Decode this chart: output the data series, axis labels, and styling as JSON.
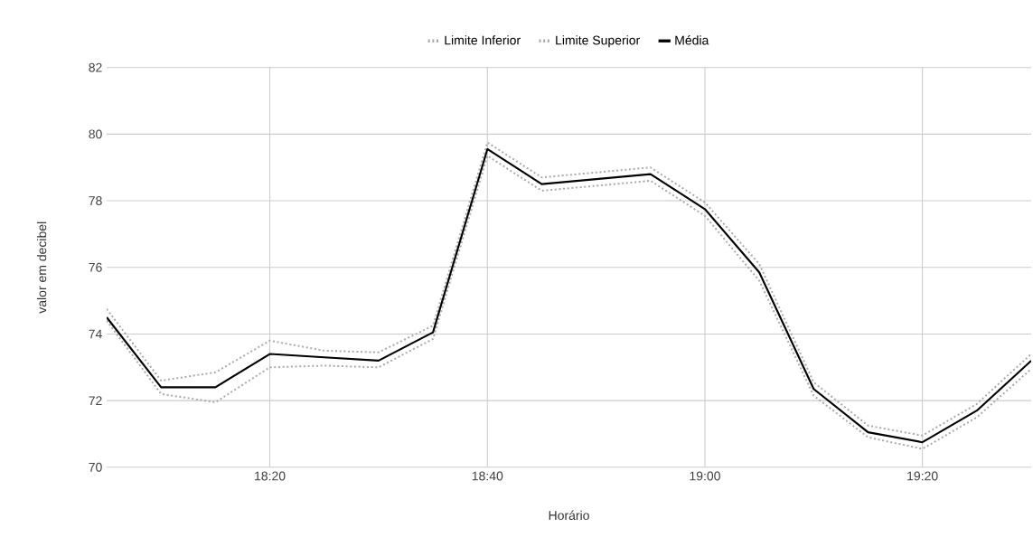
{
  "chart_data": {
    "type": "line",
    "xlabel": "Horário",
    "ylabel": "valor em decibel",
    "x": [
      18.0833,
      18.1667,
      18.25,
      18.3333,
      18.4167,
      18.5,
      18.5833,
      18.6667,
      18.75,
      18.8333,
      18.9167,
      19.0,
      19.0833,
      19.1667,
      19.25,
      19.3333,
      19.4167,
      19.5
    ],
    "series": [
      {
        "name": "Limite Inferior",
        "color": "#aaaaaa",
        "line_style": "dotted",
        "values": [
          74.4,
          72.2,
          71.95,
          73.0,
          73.05,
          73.0,
          73.85,
          79.35,
          78.3,
          78.45,
          78.6,
          77.55,
          75.6,
          72.15,
          70.9,
          70.55,
          71.5,
          72.95
        ]
      },
      {
        "name": "Limite Superior",
        "color": "#aaaaaa",
        "line_style": "dotted",
        "values": [
          74.75,
          72.6,
          72.85,
          73.8,
          73.5,
          73.45,
          74.25,
          79.75,
          78.7,
          78.85,
          79.0,
          77.95,
          76.1,
          72.55,
          71.25,
          70.95,
          71.9,
          73.4
        ]
      },
      {
        "name": "Média",
        "color": "#000000",
        "line_style": "solid",
        "values": [
          74.5,
          72.4,
          72.4,
          73.4,
          73.3,
          73.2,
          74.05,
          79.55,
          78.5,
          78.65,
          78.8,
          77.75,
          75.85,
          72.35,
          71.05,
          70.75,
          71.7,
          73.2
        ]
      }
    ],
    "xlim": [
      18.0833,
      19.5
    ],
    "ylim": [
      70,
      82
    ],
    "xticks": [
      {
        "value": 18.3333,
        "label": "18:20"
      },
      {
        "value": 18.6667,
        "label": "18:40"
      },
      {
        "value": 19.0,
        "label": "19:00"
      },
      {
        "value": 19.3333,
        "label": "19:20"
      }
    ],
    "yticks": [
      70,
      72,
      74,
      76,
      78,
      80,
      82
    ],
    "grid": true,
    "legend": "top",
    "marker": "none"
  }
}
